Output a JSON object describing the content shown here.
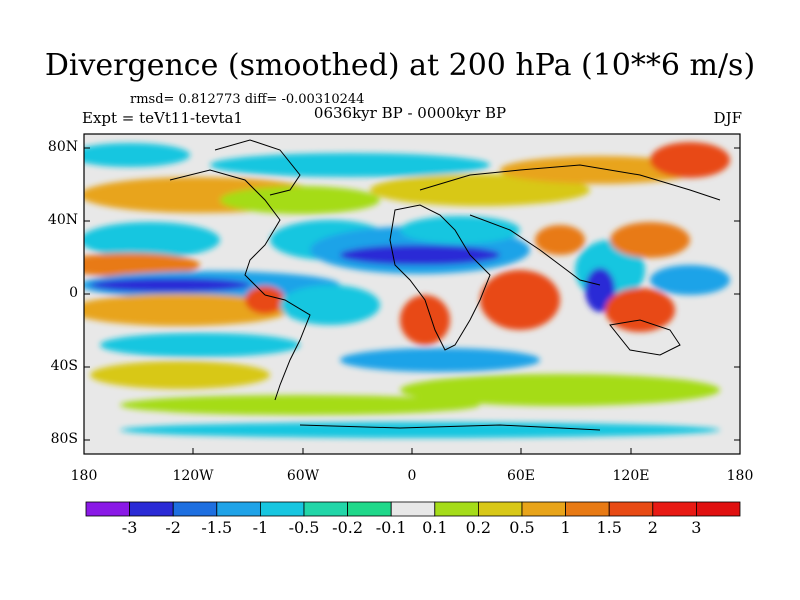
{
  "title": "Divergence (smoothed) at 200 hPa (10**6 m/s)",
  "stats": "rmsd= 0.812773 diff= -0.00310244",
  "experiment": "Expt = teVt11-tevta1",
  "period": "0636kyr BP - 0000kyr BP",
  "season": "DJF",
  "lat_labels": [
    "80N",
    "40N",
    "0",
    "40S",
    "80S"
  ],
  "lon_labels": [
    "180",
    "120W",
    "60W",
    "0",
    "60E",
    "120E",
    "180"
  ],
  "colorbar": {
    "levels": [
      "-3",
      "-2",
      "-1.5",
      "-1",
      "-0.5",
      "-0.2",
      "-0.1",
      "0.1",
      "0.2",
      "0.5",
      "1",
      "1.5",
      "2",
      "3"
    ],
    "colors": [
      "#8a19e6",
      "#2b2bd6",
      "#1e6fe0",
      "#1fa3e8",
      "#17c6e0",
      "#22d6a8",
      "#1fd88a",
      "#e8e8e8",
      "#a5dc19",
      "#d8c818",
      "#e8a41a",
      "#e87a14",
      "#e84a14",
      "#e81a14",
      "#e01010"
    ]
  }
}
